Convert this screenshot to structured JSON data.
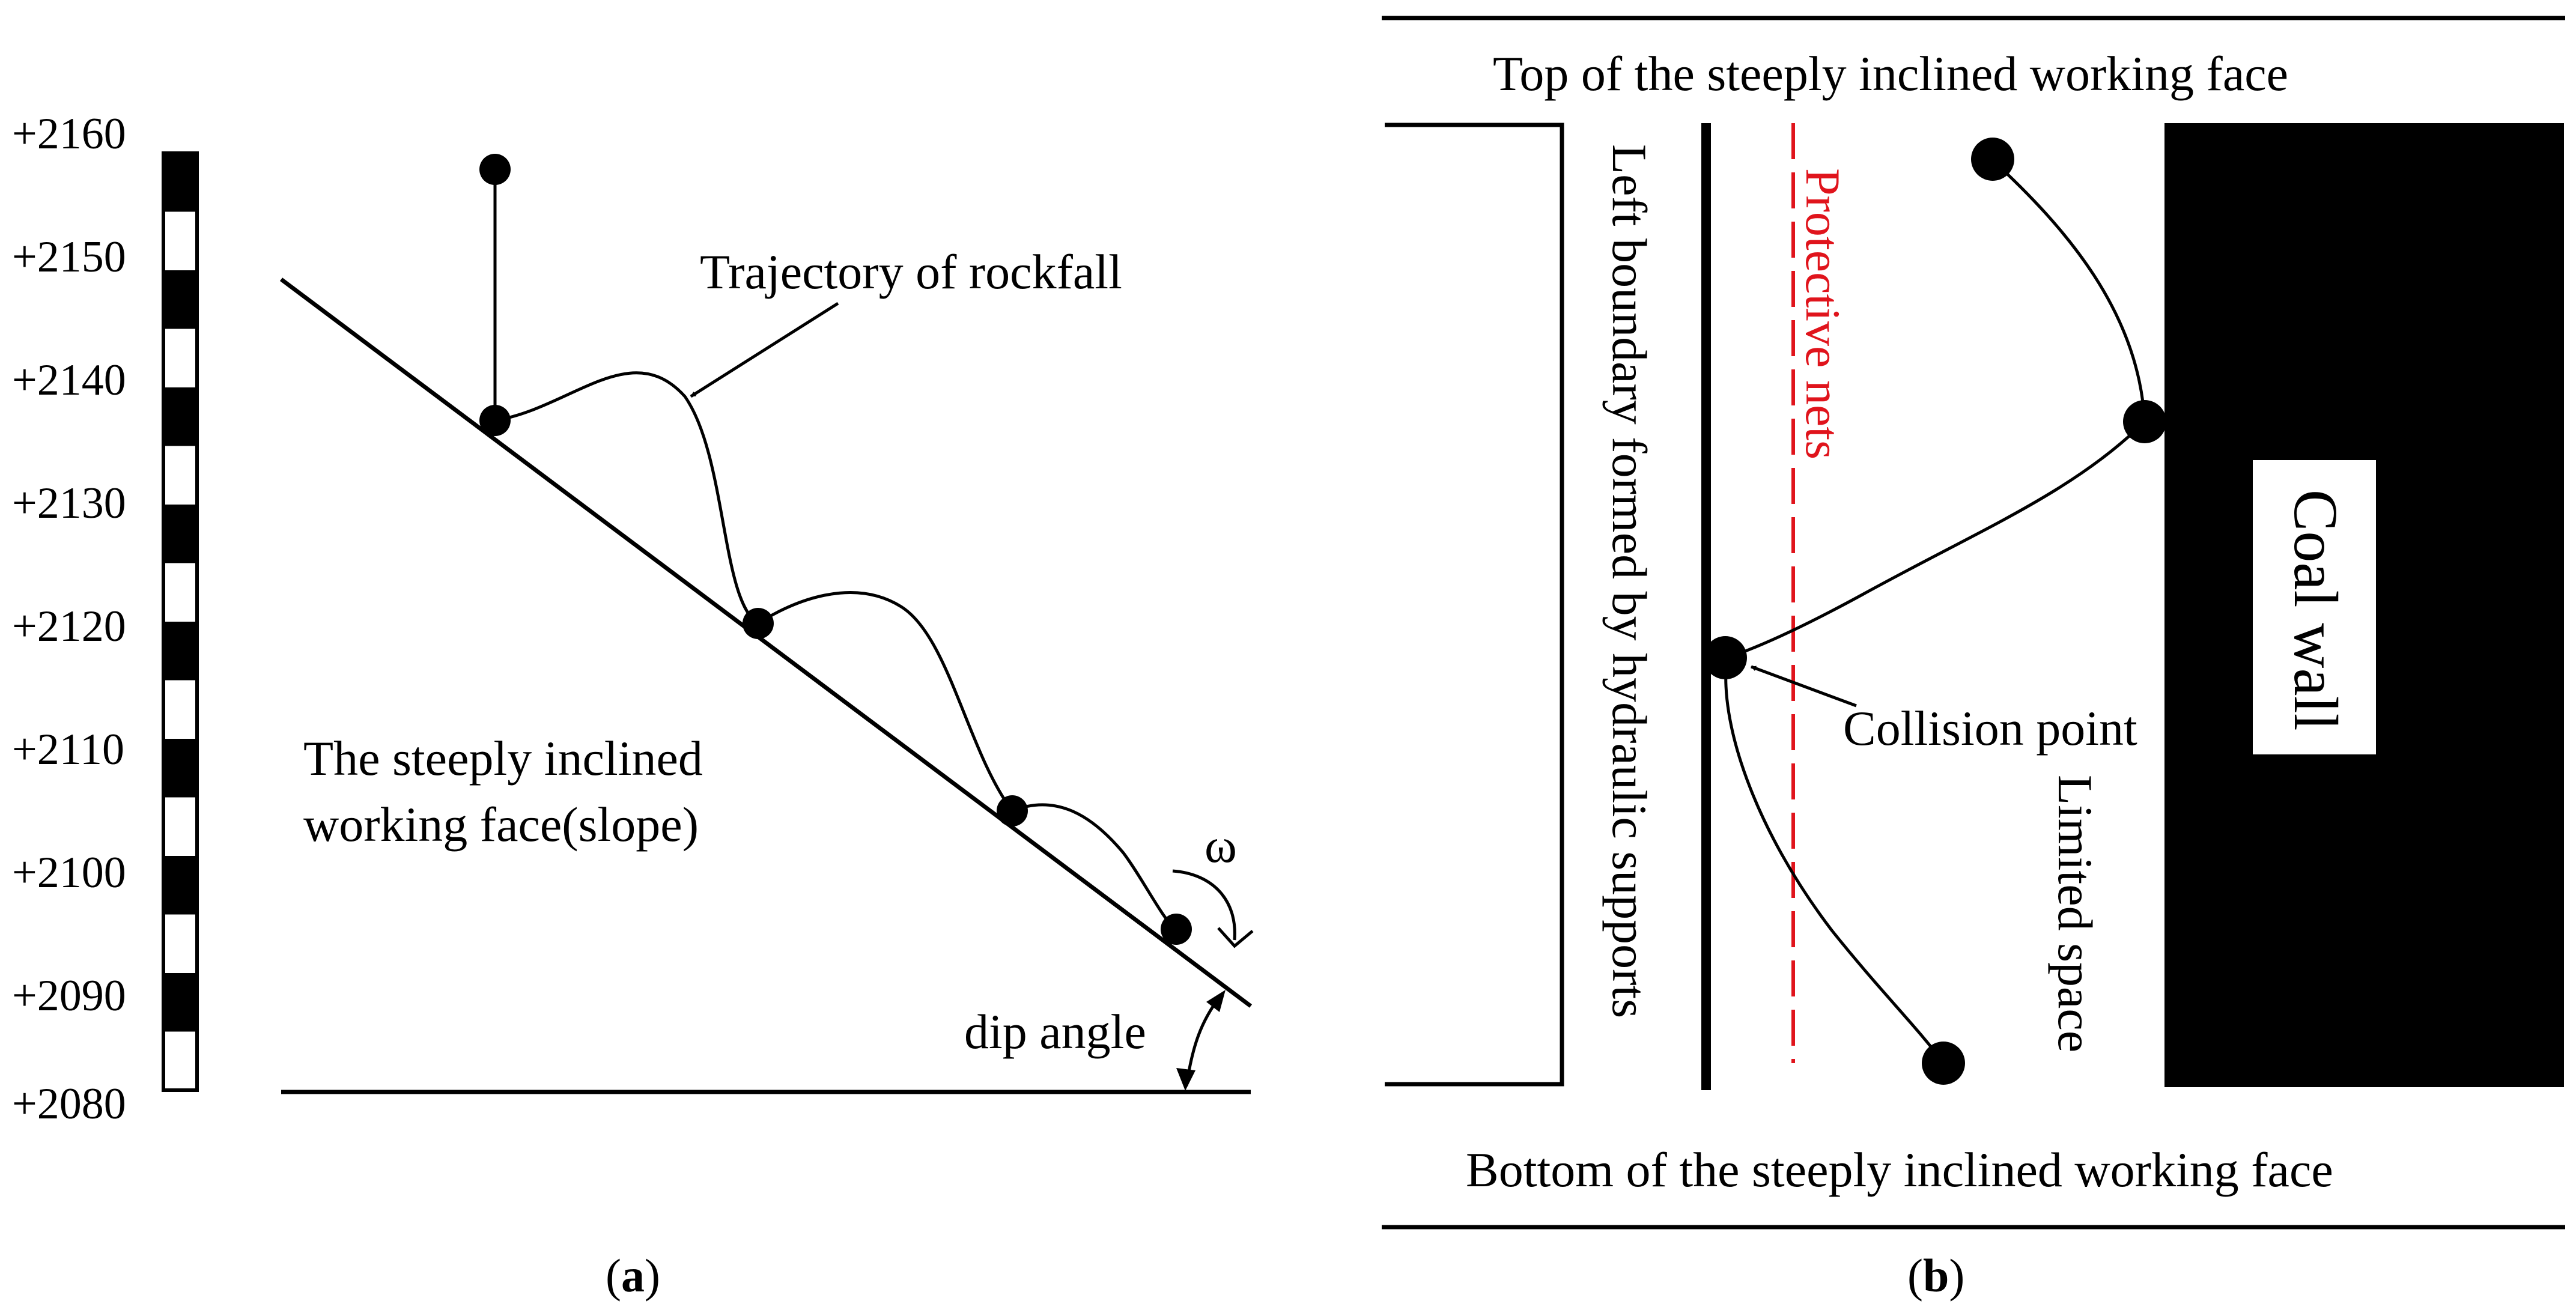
{
  "panel_a": {
    "caption": "(a)",
    "caption_letter": "a",
    "elevation_scale": {
      "labels": [
        "+2160",
        "+2150",
        "+2140",
        "+2130",
        "+2120",
        "+2110",
        "+2100",
        "+2090",
        "+2080"
      ]
    },
    "trajectory_label": "Trajectory of rockfall",
    "slope_label_line1": "The steeply inclined",
    "slope_label_line2": "working face(slope)",
    "omega_label": "ω",
    "dip_angle_label": "dip angle"
  },
  "panel_b": {
    "caption": "(b)",
    "caption_letter": "b",
    "top_label": "Top of the steeply inclined working face",
    "bottom_label": "Bottom of the steeply inclined working face",
    "left_boundary_label": "Left boundary formed by hydraulic supports",
    "protective_nets_label": "Protective nets",
    "collision_label": "Collision point",
    "limited_space_label": "Limited space",
    "coal_wall_label": "Coal wall",
    "colors": {
      "protective_nets": "#e0141c",
      "coal_wall": "#000000"
    }
  }
}
